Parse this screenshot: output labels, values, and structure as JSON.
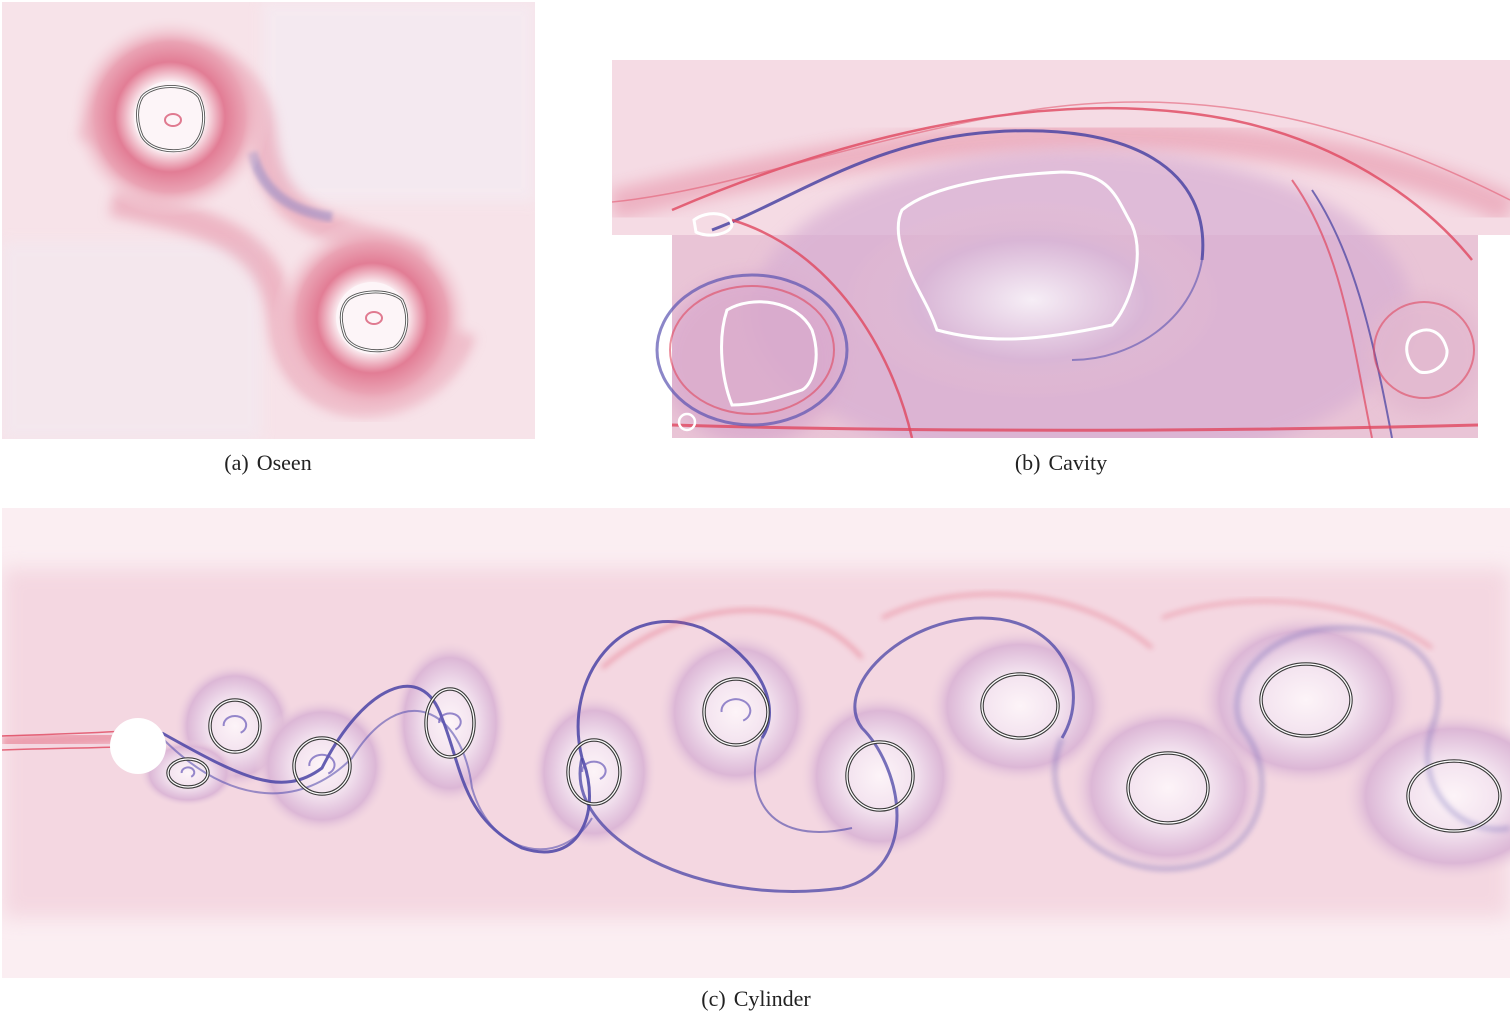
{
  "figure": {
    "panels": [
      {
        "label": "(a)",
        "name": "Oseen"
      },
      {
        "label": "(b)",
        "name": "Cavity"
      },
      {
        "label": "(c)",
        "name": "Cylinder"
      }
    ]
  },
  "colors": {
    "background_pink": "#f7e1e8",
    "ridge_red": "#e04a5e",
    "ridge_blue": "#4a4aa8",
    "contour_gray": "#ffffff"
  }
}
